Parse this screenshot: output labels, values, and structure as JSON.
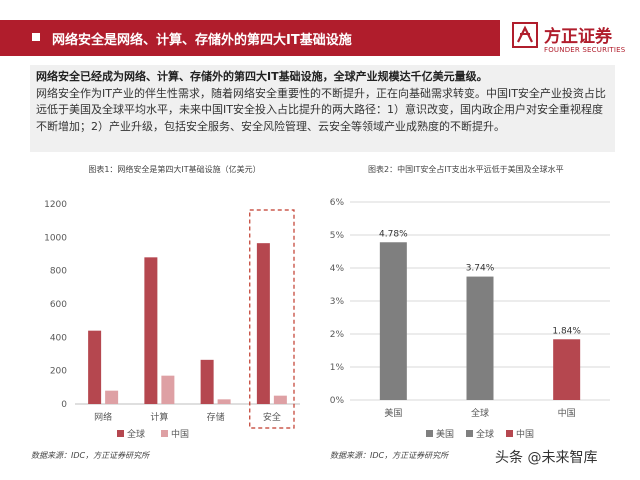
{
  "header": {
    "title": "网络安全是网络、计算、存储外的第四大IT基础设施",
    "logo_cn": "方正证券",
    "logo_en": "FOUNDER SECURITIES"
  },
  "summary": {
    "lead": "网络安全已经成为网络、计算、存储外的第四大IT基础设施，全球产业规模达千亿美元量级。",
    "body": "网络安全作为IT产业的伴生性需求，随着网络安全重要性的不断提升，正在向基础需求转变。中国IT安全产业投资占比远低于美国及全球平均水平，未来中国IT安全投入占比提升的两大路径：1）意识改变，国内政企用户对安全重视程度不断增加；2）产业升级，包括安全服务、安全风险管理、云安全等领域产业成熟度的不断提升。"
  },
  "chart1_meta": {
    "title": "图表1：网络安全是第四大IT基础设施（亿美元）",
    "source": "数据来源：IDC，方正证券研究所"
  },
  "chart2_meta": {
    "title": "图表2：中国IT安全占IT支出水平远低于美国及全球水平",
    "source": "数据来源：IDC，方正证券研究所"
  },
  "watermark": "头条 @未来智库",
  "chart_data": [
    {
      "type": "bar",
      "title": "图表1：网络安全是第四大IT基础设施（亿美元）",
      "categories": [
        "网络",
        "计算",
        "存储",
        "安全"
      ],
      "series": [
        {
          "name": "全球",
          "color": "#b5474f",
          "values": [
            440,
            880,
            265,
            965
          ]
        },
        {
          "name": "中国",
          "color": "#dea0a4",
          "values": [
            80,
            170,
            28,
            50
          ]
        }
      ],
      "ylim": [
        0,
        1200
      ],
      "yticks": [
        0,
        200,
        400,
        600,
        800,
        1000,
        1200
      ],
      "grid": false,
      "legend": "bottom",
      "highlight": "安全"
    },
    {
      "type": "bar",
      "title": "图表2：中国IT安全占IT支出水平远低于美国及全球水平",
      "categories": [
        "美国",
        "全球",
        "中国"
      ],
      "values": [
        4.78,
        3.74,
        1.84
      ],
      "labels": [
        "4.78%",
        "3.74%",
        "1.84%"
      ],
      "colors": [
        "#7f7f7f",
        "#7f7f7f",
        "#b5474f"
      ],
      "series_names": [
        "美国",
        "全球",
        "中国"
      ],
      "ylim": [
        0,
        6
      ],
      "yticks": [
        "0%",
        "1%",
        "2%",
        "3%",
        "4%",
        "5%",
        "6%"
      ],
      "grid": true,
      "legend": "bottom"
    }
  ]
}
